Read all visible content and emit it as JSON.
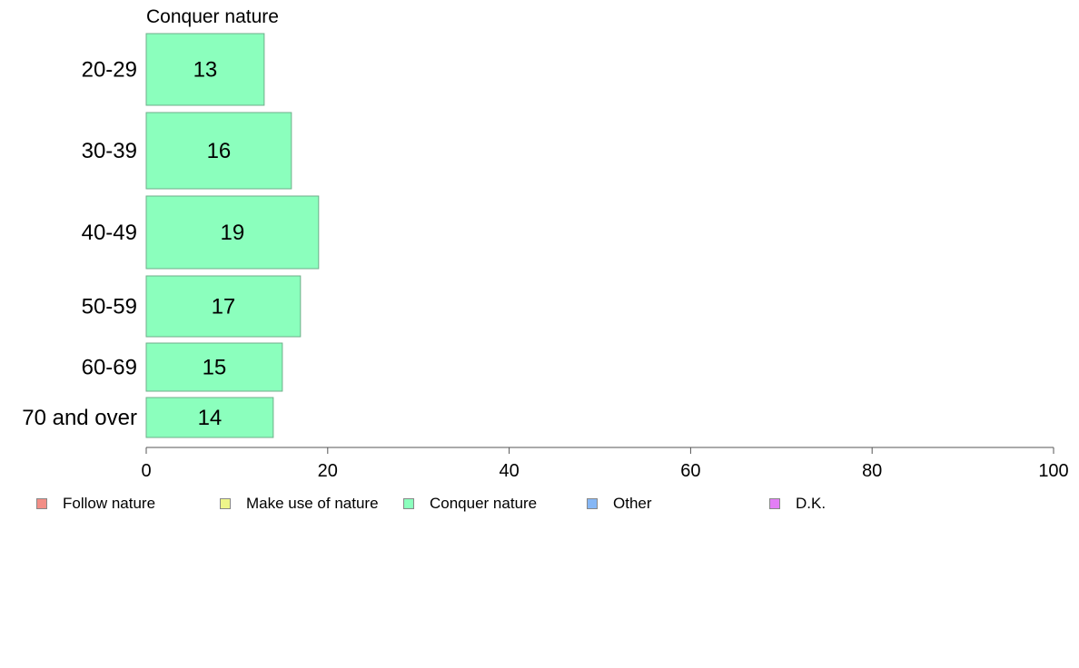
{
  "chart_data": {
    "type": "bar",
    "orientation": "horizontal",
    "title": "Conquer nature",
    "categories": [
      "20-29",
      "30-39",
      "40-49",
      "50-59",
      "60-69",
      "70 and over"
    ],
    "series": [
      {
        "name": "Conquer nature",
        "values": [
          13,
          16,
          19,
          17,
          15,
          14
        ]
      }
    ],
    "xlim": [
      0,
      100
    ],
    "xticks": [
      0,
      20,
      40,
      60,
      80,
      100
    ],
    "grid": false,
    "legend_position": "bottom"
  },
  "legend": [
    {
      "label": "Follow nature",
      "color": "#f28e86"
    },
    {
      "label": "Make use of nature",
      "color": "#eef58a"
    },
    {
      "label": "Conquer nature",
      "color": "#8bffbd"
    },
    {
      "label": "Other",
      "color": "#86b7f5"
    },
    {
      "label": "D.K.",
      "color": "#e37ef5"
    }
  ],
  "colors": {
    "bar": "#8bffbd",
    "bar_stroke": "#6fae8a",
    "axis": "#555555"
  }
}
